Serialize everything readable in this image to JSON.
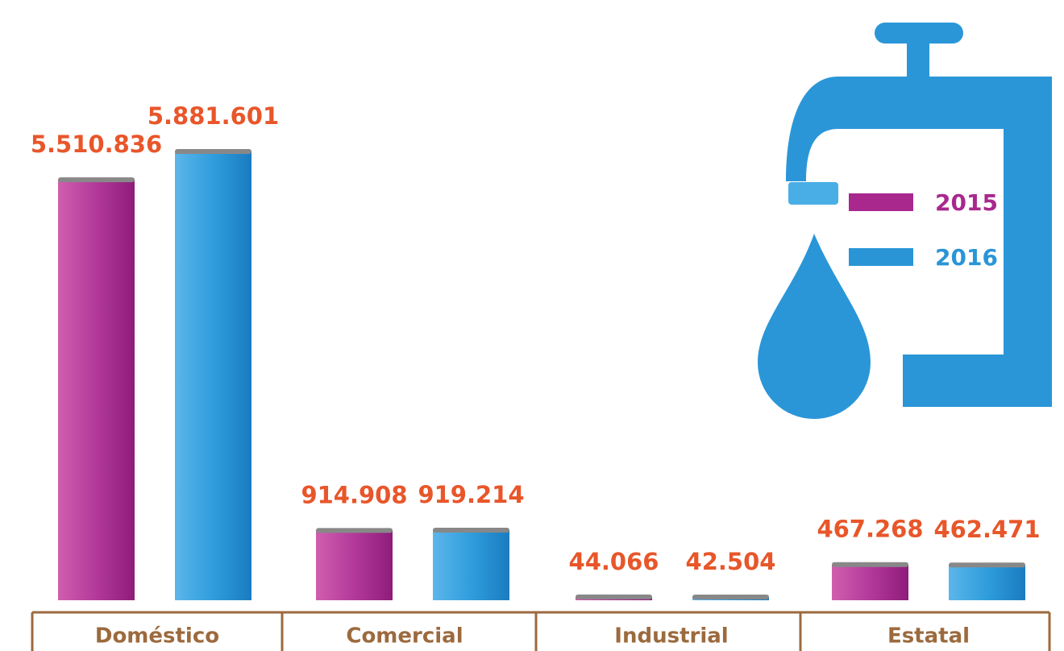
{
  "chart_data": {
    "type": "bar",
    "categories": [
      "Doméstico",
      "Comercial",
      "Industrial",
      "Estatal"
    ],
    "series": [
      {
        "name": "2015",
        "color": "#a8288e",
        "values": [
          5510836,
          914908,
          44066,
          467268
        ],
        "value_labels": [
          "5.510.836",
          "914.908",
          "44.066",
          "467.268"
        ]
      },
      {
        "name": "2016",
        "color": "#2a95d6",
        "values": [
          5881601,
          919214,
          42504,
          462471
        ],
        "value_labels": [
          "5.881.601",
          "919.214",
          "42.504",
          "462.471"
        ]
      }
    ],
    "legend": "top-right"
  }
}
